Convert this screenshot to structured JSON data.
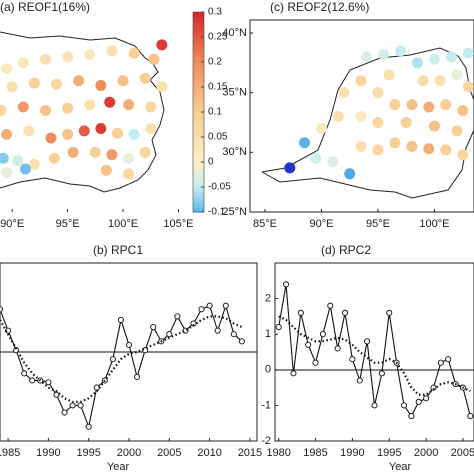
{
  "chart_data": [
    {
      "type": "map",
      "title": "(a) REOF1(16%)",
      "xlim": [
        88.9,
        105.5
      ],
      "ylim": [
        25,
        40.5
      ],
      "xticks": [
        {
          "value": 90,
          "label": "90°E"
        },
        {
          "value": 95,
          "label": "95°E"
        },
        {
          "value": 100,
          "label": "100°E"
        },
        {
          "value": 105,
          "label": "105°E"
        }
      ],
      "clim": [
        -0.1,
        0.3
      ],
      "cticks": [
        0.3,
        0.25,
        0.2,
        0.15,
        0.1,
        0.05,
        0,
        -0.05,
        -0.1
      ],
      "color_stops": [
        [
          -0.3,
          "#2233c8"
        ],
        [
          -0.1,
          "#5ab4e8"
        ],
        [
          -0.05,
          "#c5ecf2"
        ],
        [
          0,
          "#fbf1c8"
        ],
        [
          0.1,
          "#f8cf94"
        ],
        [
          0.2,
          "#ee8d5c"
        ],
        [
          0.3,
          "#d7262b"
        ]
      ],
      "x": [
        89.5,
        91,
        93,
        95,
        97,
        99,
        101,
        102.8,
        103.5,
        90,
        92,
        94,
        96,
        98,
        100,
        102,
        103.5,
        89,
        91,
        93,
        95,
        97,
        98.8,
        100.5,
        102.5,
        89.5,
        91.5,
        93.5,
        95,
        96.5,
        98,
        99.5,
        101,
        102.5,
        89.2,
        90.5,
        92,
        93.8,
        95.5,
        97.5,
        99,
        100.5,
        102,
        89.5,
        91.2,
        98.5,
        100.5
      ],
      "y": [
        37,
        37.5,
        37.8,
        38,
        38.2,
        38.5,
        38.3,
        37.8,
        39,
        35.5,
        35.8,
        35.7,
        36,
        35.6,
        36,
        36.2,
        35.5,
        33.5,
        33.8,
        33.5,
        33.7,
        34,
        34.2,
        34,
        33.8,
        31.5,
        31.8,
        31.2,
        31.5,
        31.8,
        32,
        31.6,
        31.5,
        32,
        29.5,
        29.3,
        29,
        29.5,
        30,
        30,
        29.8,
        29.5,
        30,
        28.3,
        28.6,
        28.5,
        28.2
      ],
      "values": [
        0.02,
        0.03,
        0.05,
        0.04,
        0.03,
        0.05,
        0.1,
        0.12,
        0.28,
        0.05,
        0.1,
        0.08,
        0.15,
        0.2,
        0.12,
        0.1,
        0.05,
        0.08,
        0.18,
        0.12,
        0.1,
        0.05,
        0.28,
        0.15,
        0.08,
        0.15,
        0.05,
        0.2,
        0.12,
        0.25,
        0.28,
        0.1,
        -0.05,
        0.05,
        -0.08,
        -0.04,
        0.05,
        0.1,
        0.15,
        0.1,
        0.18,
        -0.02,
        0.08,
        -0.02,
        -0.09,
        0.12,
        0.08
      ]
    },
    {
      "type": "map",
      "title": "(c) REOF2(12.6%)",
      "xlim": [
        83.5,
        103.5
      ],
      "ylim": [
        25,
        40.5
      ],
      "xticks": [
        {
          "value": 85,
          "label": "85°E"
        },
        {
          "value": 90,
          "label": "90°E"
        },
        {
          "value": 95,
          "label": "95°E"
        },
        {
          "value": 100,
          "label": "100°E"
        }
      ],
      "yticks": [
        {
          "value": 25,
          "label": "25°N"
        },
        {
          "value": 30,
          "label": "30°N"
        },
        {
          "value": 35,
          "label": "35°N"
        },
        {
          "value": 40,
          "label": "40°N"
        }
      ],
      "clim": [
        -0.1,
        0.3
      ],
      "color_stops": [
        [
          -0.3,
          "#2233c8"
        ],
        [
          -0.1,
          "#5ab4e8"
        ],
        [
          -0.05,
          "#c5ecf2"
        ],
        [
          0,
          "#fbf1c8"
        ],
        [
          0.1,
          "#f8cf94"
        ],
        [
          0.2,
          "#ee8d5c"
        ],
        [
          0.3,
          "#d7262b"
        ]
      ],
      "x": [
        88.5,
        87.2,
        89.5,
        91,
        92.5,
        90,
        91.5,
        93.5,
        95,
        96.5,
        98,
        99.5,
        101,
        102.5,
        92,
        93.5,
        95,
        96.5,
        98,
        99.5,
        101,
        102.5,
        94,
        95.5,
        97,
        98.5,
        100,
        101.5,
        103,
        100.5,
        102,
        103,
        96,
        99,
        97.5,
        100,
        102,
        93.5,
        95
      ],
      "y": [
        30.8,
        28.7,
        29.5,
        29.2,
        28.2,
        32,
        33,
        30.5,
        30.2,
        30.8,
        30.5,
        30.3,
        30.2,
        29.8,
        35,
        36,
        35,
        34,
        34,
        33.8,
        34,
        33.5,
        38,
        38.2,
        38.5,
        37.5,
        37.8,
        38,
        38.3,
        36,
        36.5,
        35.5,
        36.5,
        36,
        32.5,
        32.2,
        31.8,
        33,
        32.5
      ],
      "values": [
        -0.1,
        -0.3,
        -0.04,
        -0.03,
        -0.12,
        0.02,
        0.05,
        0.05,
        0.08,
        0.1,
        0.12,
        0.15,
        0.1,
        0.08,
        0.05,
        0.08,
        0.06,
        0.1,
        0.12,
        0.15,
        0.1,
        0.12,
        -0.03,
        -0.04,
        -0.05,
        -0.06,
        -0.04,
        -0.05,
        -0.05,
        0.05,
        -0.02,
        0.08,
        0.05,
        0.06,
        0.1,
        0.12,
        0.1,
        0.02,
        0.08
      ]
    },
    {
      "type": "line",
      "title": "(b) RPC1",
      "xlabel": "Year",
      "xlim": [
        1984,
        2016
      ],
      "ylim": [
        -2.5,
        2.5
      ],
      "xticks": [
        1985,
        1990,
        1995,
        2000,
        2005,
        2010,
        2015
      ],
      "x": [
        1984,
        1985,
        1986,
        1987,
        1988,
        1989,
        1990,
        1991,
        1992,
        1993,
        1994,
        1995,
        1996,
        1997,
        1998,
        1999,
        2000,
        2001,
        2002,
        2003,
        2004,
        2005,
        2006,
        2007,
        2008,
        2009,
        2010,
        2011,
        2012,
        2013,
        2014
      ],
      "series": [
        {
          "color": "#111",
          "values": [
            1.2,
            0.6,
            0.05,
            -0.6,
            -0.8,
            -0.8,
            -0.85,
            -1.2,
            -1.7,
            -1.5,
            -1.5,
            -2.1,
            -1.0,
            -0.8,
            -0.2,
            0.9,
            0.2,
            -0.7,
            0.05,
            0.7,
            0.3,
            0.5,
            1.0,
            0.6,
            0.8,
            1.2,
            1.3,
            0.6,
            1.3,
            0.5,
            0.3
          ]
        },
        {
          "color": "#111",
          "values": [
            0.9,
            0.5,
            0.1,
            -0.3,
            -0.6,
            -0.8,
            -1.0,
            -1.1,
            -1.3,
            -1.4,
            -1.4,
            -1.3,
            -1.1,
            -0.8,
            -0.5,
            -0.2,
            -0.05,
            0.0,
            0.1,
            0.2,
            0.3,
            0.4,
            0.5,
            0.6,
            0.75,
            0.9,
            1.0,
            1.0,
            0.95,
            0.8,
            0.7
          ]
        }
      ]
    },
    {
      "type": "line",
      "title": "(d) RPC2",
      "xlabel": "Year",
      "xlim": [
        1979.5,
        2006.5
      ],
      "ylim": [
        -2,
        3
      ],
      "xticks": [
        1980,
        1985,
        1990,
        1995,
        2000,
        2005
      ],
      "yticks": [
        -2,
        -1,
        0,
        1,
        2
      ],
      "x": [
        1980,
        1981,
        1982,
        1983,
        1984,
        1985,
        1986,
        1987,
        1988,
        1989,
        1990,
        1991,
        1992,
        1993,
        1994,
        1995,
        1996,
        1997,
        1998,
        1999,
        2000,
        2001,
        2002,
        2003,
        2004,
        2005,
        2006
      ],
      "series": [
        {
          "color": "#111",
          "values": [
            1.2,
            2.4,
            -0.1,
            1.6,
            0.7,
            0.2,
            1.0,
            1.8,
            0.6,
            1.6,
            0.3,
            -0.3,
            0.8,
            -1.0,
            -0.1,
            1.6,
            0.2,
            -1.0,
            -1.3,
            -0.9,
            -0.8,
            -0.5,
            0.2,
            0.3,
            -0.4,
            -0.5,
            -1.3
          ]
        },
        {
          "color": "#111",
          "values": [
            1.5,
            1.4,
            1.2,
            1.0,
            0.9,
            0.8,
            0.8,
            0.85,
            0.9,
            0.85,
            0.7,
            0.5,
            0.35,
            0.2,
            0.2,
            0.3,
            0.2,
            -0.1,
            -0.5,
            -0.7,
            -0.7,
            -0.55,
            -0.4,
            -0.35,
            -0.4,
            -0.5,
            -0.6
          ]
        }
      ]
    }
  ]
}
